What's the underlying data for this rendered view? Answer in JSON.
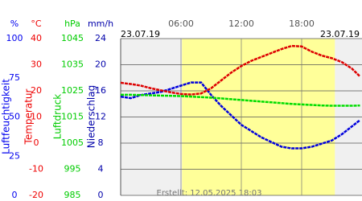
{
  "chart_data": {
    "type": "line",
    "date_left": "23.07.19",
    "date_right": "23.07.19",
    "footer": "Erstellt: 12.05.2025 18:03",
    "xlim": [
      0,
      24
    ],
    "xticks": [
      {
        "value": 6,
        "label": "06:00"
      },
      {
        "value": 12,
        "label": "12:00"
      },
      {
        "value": 18,
        "label": "18:00"
      }
    ],
    "grid": true,
    "background": "#f0f0f0",
    "daylight": {
      "x": [
        6.1,
        21.3
      ],
      "color": "#ffff99"
    },
    "y_axes": [
      {
        "unit": "%",
        "title": "Luftfeuchtigkeit",
        "color": "#0000ee",
        "ylim": [
          0,
          100
        ],
        "yticks": [
          0,
          25,
          50,
          75,
          100
        ]
      },
      {
        "unit": "°C",
        "title": "Temperatur",
        "color": "#ee0000",
        "ylim": [
          -20,
          40
        ],
        "yticks": [
          -20,
          -10,
          0,
          10,
          20,
          30,
          40
        ]
      },
      {
        "unit": "hPa",
        "title": "Luftdruck",
        "color": "#00cc00",
        "ylim": [
          985,
          1045
        ],
        "yticks": [
          985,
          995,
          1005,
          1015,
          1025,
          1035,
          1045
        ]
      },
      {
        "unit": "mm/h",
        "title": "Niederschlag",
        "color": "#0000aa",
        "ylim": [
          0,
          24
        ],
        "yticks": [
          0,
          4,
          8,
          12,
          16,
          20,
          24
        ]
      }
    ],
    "x": [
      0,
      1,
      2,
      3,
      4,
      5,
      6,
      7,
      8,
      9,
      10,
      11,
      12,
      13,
      14,
      15,
      16,
      17,
      18,
      19,
      20,
      21,
      22,
      23,
      23.8
    ],
    "series": [
      {
        "name": "Luftfeuchtigkeit",
        "axis": 0,
        "color": "#0000dd",
        "values": [
          63,
          62,
          64,
          65,
          66,
          68,
          70,
          72,
          72,
          64,
          57,
          51,
          45,
          41,
          37,
          34,
          31,
          30,
          30,
          31,
          33,
          35,
          39,
          44,
          48
        ]
      },
      {
        "name": "Temperatur",
        "axis": 1,
        "color": "#dd0000",
        "values": [
          23.1,
          22.6,
          22.0,
          21.0,
          20.2,
          19.4,
          18.8,
          18.6,
          19.0,
          21.0,
          24.0,
          27.0,
          29.5,
          31.5,
          33.0,
          34.5,
          36.0,
          37.2,
          37.0,
          35.0,
          33.5,
          32.5,
          31.0,
          28.5,
          25.5
        ]
      },
      {
        "name": "Luftdruck",
        "axis": 2,
        "color": "#00dd00",
        "values": [
          1023.5,
          1023.5,
          1023.4,
          1023.3,
          1023.2,
          1023.1,
          1023.0,
          1022.8,
          1022.6,
          1022.4,
          1022.1,
          1021.8,
          1021.5,
          1021.2,
          1020.9,
          1020.6,
          1020.3,
          1020.0,
          1019.8,
          1019.6,
          1019.4,
          1019.3,
          1019.3,
          1019.3,
          1019.4
        ]
      }
    ]
  }
}
